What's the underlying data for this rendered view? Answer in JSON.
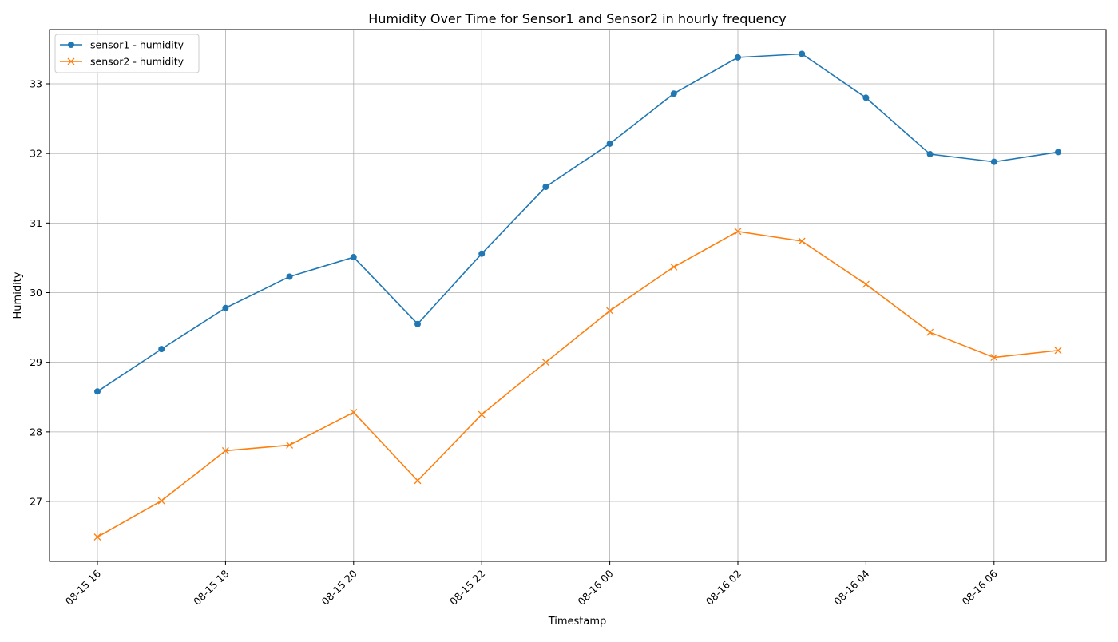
{
  "chart_data": {
    "type": "line",
    "title": "Humidity Over Time for Sensor1 and Sensor2 in hourly frequency",
    "xlabel": "Timestamp",
    "ylabel": "Humidity",
    "x": [
      "08-15 16",
      "08-15 17",
      "08-15 18",
      "08-15 19",
      "08-15 20",
      "08-15 21",
      "08-15 22",
      "08-15 23",
      "08-16 00",
      "08-16 01",
      "08-16 02",
      "08-16 03",
      "08-16 04",
      "08-16 05",
      "08-16 06",
      "08-16 07"
    ],
    "xticks": [
      "08-15 16",
      "08-15 18",
      "08-15 20",
      "08-15 22",
      "08-16 00",
      "08-16 02",
      "08-16 04",
      "08-16 06"
    ],
    "yticks": [
      27,
      28,
      29,
      30,
      31,
      32,
      33
    ],
    "ylim": [
      26.14,
      33.78
    ],
    "grid": true,
    "legend_position": "top-left",
    "series": [
      {
        "name": "sensor1 - humidity",
        "color": "#1f77b4",
        "marker": "circle",
        "values": [
          28.58,
          29.19,
          29.78,
          30.23,
          30.51,
          29.55,
          30.56,
          31.52,
          32.14,
          32.86,
          33.38,
          33.43,
          32.8,
          31.99,
          31.88,
          32.02
        ]
      },
      {
        "name": "sensor2 - humidity",
        "color": "#ff7f0e",
        "marker": "x",
        "values": [
          26.49,
          27.01,
          27.73,
          27.81,
          28.28,
          27.3,
          28.25,
          29.0,
          29.74,
          30.37,
          30.88,
          30.74,
          30.12,
          29.43,
          29.07,
          29.17
        ]
      }
    ]
  }
}
